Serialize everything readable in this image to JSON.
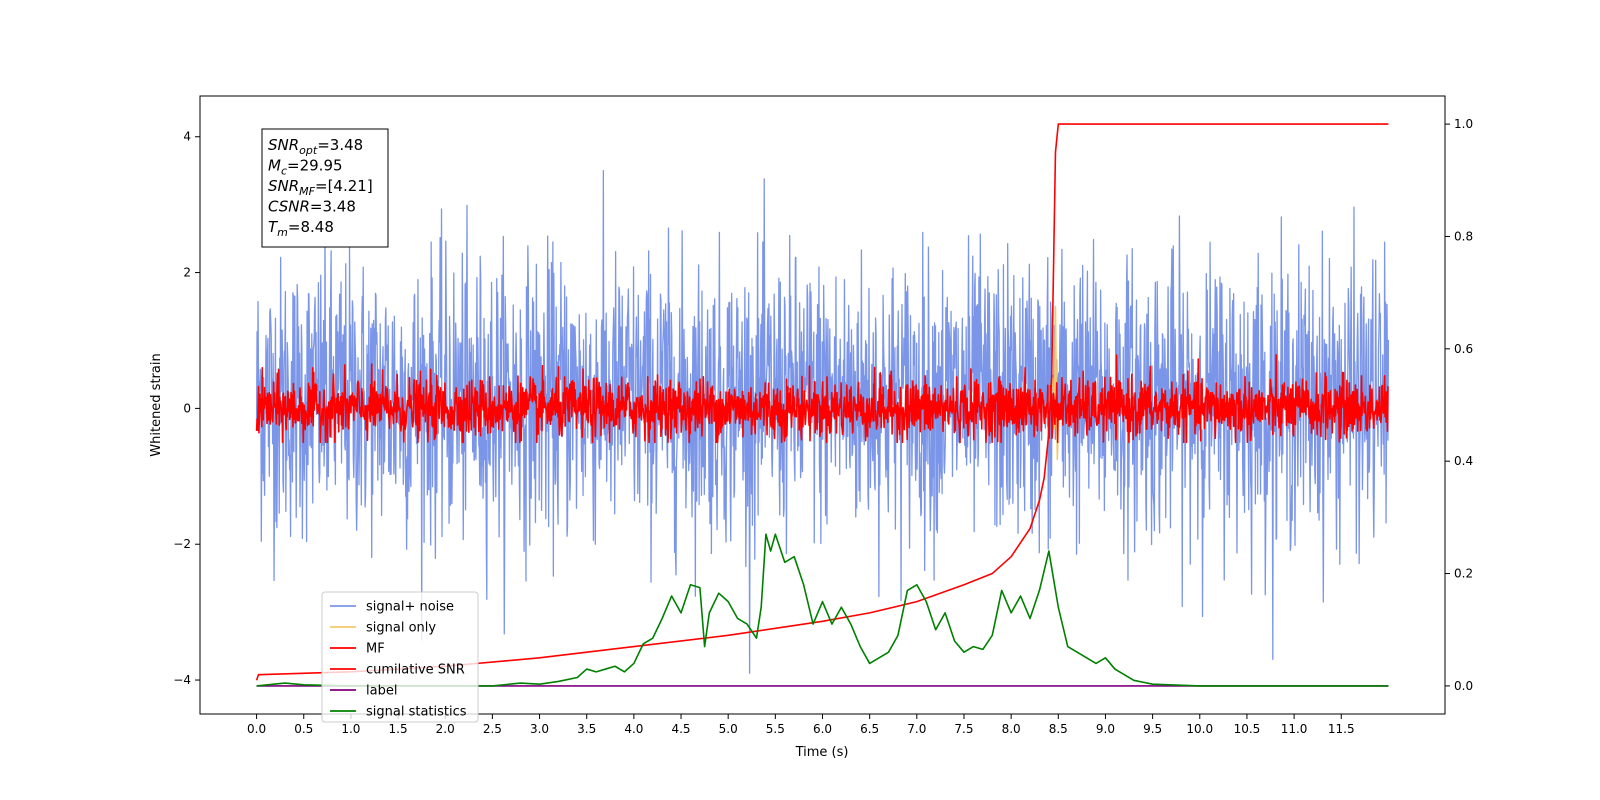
{
  "chart_data": {
    "type": "line",
    "xlabel": "Time (s)",
    "ylabel_left": "Whitened strain",
    "ylabel_right": "",
    "xlim": [
      -0.6,
      12.6
    ],
    "ylim_left": [
      -4.5,
      4.6
    ],
    "ylim_right": [
      -0.05,
      1.05
    ],
    "x_ticks": [
      0.0,
      0.5,
      1.0,
      1.5,
      2.0,
      2.5,
      3.0,
      3.5,
      4.0,
      4.5,
      5.0,
      5.5,
      6.0,
      6.5,
      7.0,
      7.5,
      8.0,
      8.5,
      9.0,
      9.5,
      10.0,
      10.5,
      11.0,
      11.5
    ],
    "x_tick_labels": [
      "0.0",
      "0.5",
      "1.0",
      "1.5",
      "2.0",
      "2.5",
      "3.0",
      "3.5",
      "4.0",
      "4.5",
      "5.0",
      "5.5",
      "6.0",
      "6.5",
      "7.0",
      "7.5",
      "8.0",
      "8.5",
      "9.0",
      "9.5",
      "10.0",
      "10.5",
      "11.0",
      "11.5"
    ],
    "y_ticks_left": [
      -4,
      -2,
      0,
      2,
      4
    ],
    "y_tick_labels_left": [
      "−4",
      "−2",
      "0",
      "2",
      "4"
    ],
    "y_ticks_right": [
      0.0,
      0.2,
      0.4,
      0.6,
      0.8,
      1.0
    ],
    "y_tick_labels_right": [
      "0.0",
      "0.2",
      "0.4",
      "0.6",
      "0.8",
      "1.0"
    ],
    "grid": false,
    "legend_placement": "lower-left",
    "annotation": {
      "lines": [
        {
          "base": "SNR",
          "sub": "opt",
          "rest": "=3.48"
        },
        {
          "base": "M",
          "sub": "c",
          "rest": "=29.95"
        },
        {
          "base": "SNR",
          "sub": "MF",
          "rest": "=[4.21]"
        },
        {
          "base": "CSNR",
          "sub": "",
          "rest": "=3.48"
        },
        {
          "base": "T",
          "sub": "m",
          "rest": "=8.48"
        }
      ]
    },
    "series": [
      {
        "name": "signal+ noise",
        "color": "#7b96e8",
        "axis": "left",
        "noise": {
          "x_start": 0.0,
          "x_end": 12.0,
          "typical_range": [
            -1.5,
            1.8
          ],
          "spike_range": [
            -3.9,
            4.2
          ]
        }
      },
      {
        "name": "signal only",
        "color": "#f5c96a",
        "axis": "left",
        "x": [
          8.4,
          8.44,
          8.46,
          8.47,
          8.48,
          8.49,
          8.5
        ],
        "y": [
          0.1,
          0.45,
          -0.3,
          1.5,
          0.2,
          -0.75,
          0.0
        ]
      },
      {
        "name": "MF",
        "color": "#ff0000",
        "axis": "left",
        "noise": {
          "x_start": 0.0,
          "x_end": 12.0,
          "typical_range": [
            -0.4,
            0.4
          ],
          "spike_range": [
            -0.5,
            1.0
          ]
        }
      },
      {
        "name": "cumilative SNR",
        "color": "#ff0000",
        "axis": "right",
        "x": [
          0.0,
          0.02,
          1.0,
          2.0,
          3.0,
          4.0,
          5.0,
          6.0,
          6.5,
          7.0,
          7.5,
          7.8,
          8.0,
          8.2,
          8.3,
          8.35,
          8.4,
          8.43,
          8.45,
          8.47,
          8.5,
          12.0
        ],
        "y": [
          0.01,
          0.02,
          0.025,
          0.035,
          0.05,
          0.07,
          0.09,
          0.115,
          0.13,
          0.15,
          0.18,
          0.2,
          0.23,
          0.28,
          0.33,
          0.37,
          0.45,
          0.55,
          0.75,
          0.95,
          1.0,
          1.0
        ]
      },
      {
        "name": "label",
        "color": "#800080",
        "axis": "right",
        "x": [
          0.0,
          12.0
        ],
        "y": [
          0.0,
          0.0
        ]
      },
      {
        "name": "signal statistics",
        "color": "#008000",
        "axis": "right",
        "x": [
          0.0,
          0.3,
          0.5,
          1.0,
          1.5,
          2.0,
          2.5,
          2.8,
          3.0,
          3.2,
          3.4,
          3.5,
          3.6,
          3.7,
          3.8,
          3.9,
          4.0,
          4.1,
          4.2,
          4.3,
          4.4,
          4.5,
          4.6,
          4.7,
          4.75,
          4.8,
          4.9,
          5.0,
          5.1,
          5.2,
          5.3,
          5.35,
          5.4,
          5.45,
          5.5,
          5.6,
          5.7,
          5.8,
          5.9,
          6.0,
          6.1,
          6.2,
          6.3,
          6.4,
          6.5,
          6.6,
          6.7,
          6.8,
          6.9,
          7.0,
          7.1,
          7.2,
          7.3,
          7.4,
          7.5,
          7.6,
          7.7,
          7.8,
          7.9,
          8.0,
          8.1,
          8.2,
          8.3,
          8.4,
          8.5,
          8.6,
          8.7,
          8.8,
          8.9,
          9.0,
          9.1,
          9.2,
          9.3,
          9.5,
          10.0,
          12.0
        ],
        "y": [
          0.0,
          0.005,
          0.002,
          0.0,
          0.0,
          0.0,
          0.0,
          0.005,
          0.003,
          0.008,
          0.015,
          0.03,
          0.025,
          0.03,
          0.035,
          0.025,
          0.04,
          0.075,
          0.085,
          0.12,
          0.16,
          0.13,
          0.18,
          0.175,
          0.07,
          0.13,
          0.165,
          0.15,
          0.12,
          0.11,
          0.085,
          0.14,
          0.27,
          0.24,
          0.27,
          0.22,
          0.23,
          0.18,
          0.11,
          0.15,
          0.11,
          0.14,
          0.11,
          0.07,
          0.04,
          0.05,
          0.06,
          0.09,
          0.17,
          0.18,
          0.15,
          0.1,
          0.13,
          0.08,
          0.06,
          0.07,
          0.065,
          0.09,
          0.17,
          0.13,
          0.16,
          0.12,
          0.17,
          0.24,
          0.14,
          0.07,
          0.06,
          0.05,
          0.04,
          0.05,
          0.03,
          0.02,
          0.01,
          0.003,
          0.0,
          0.0
        ]
      }
    ]
  }
}
